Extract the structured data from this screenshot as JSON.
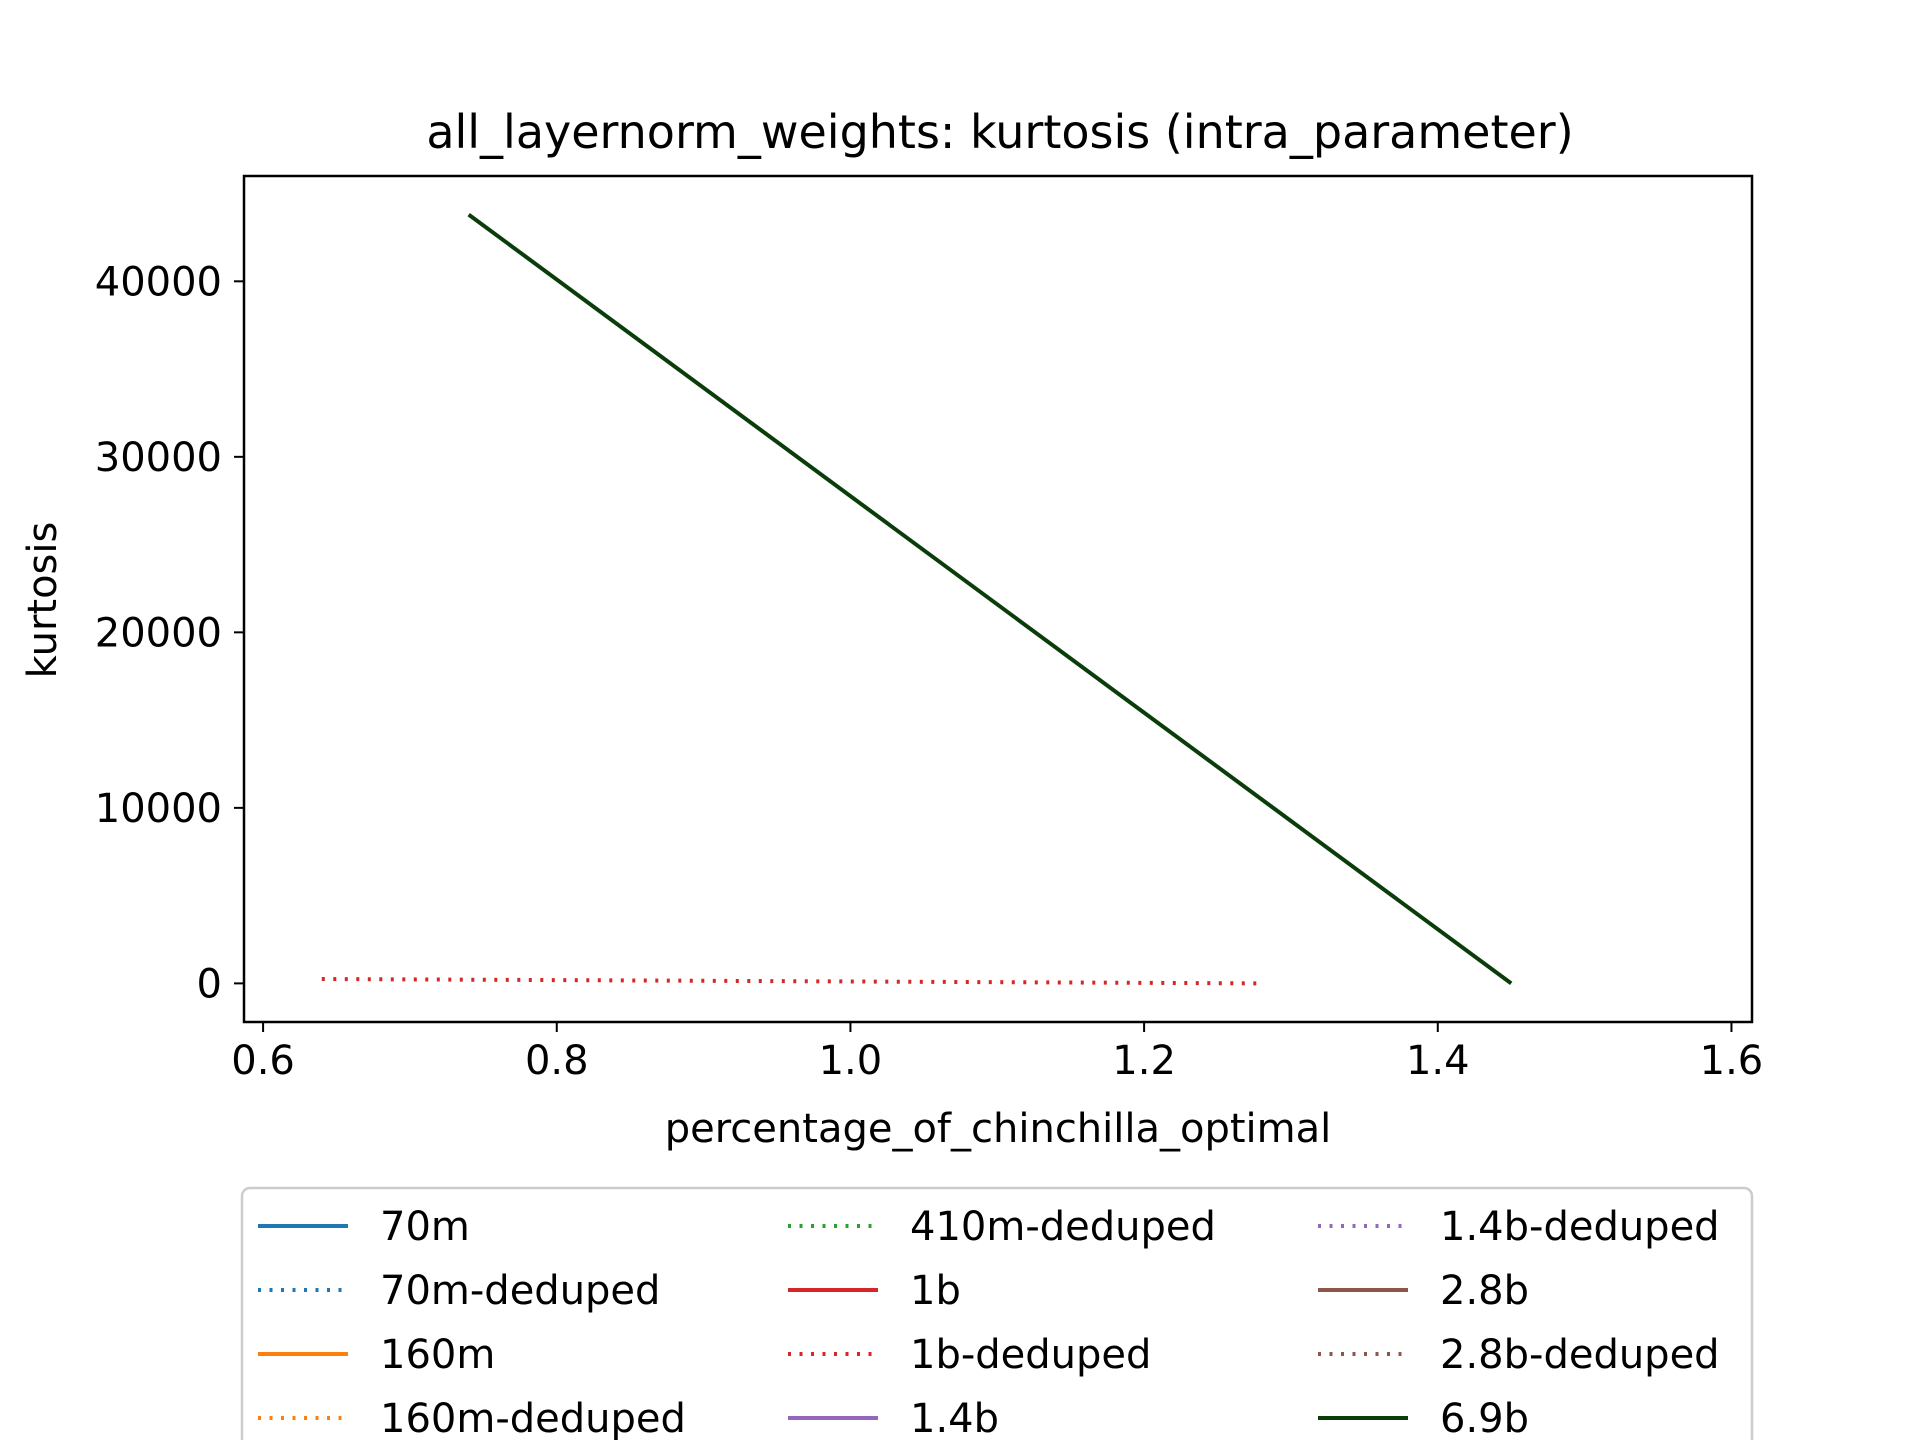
{
  "chart_data": {
    "type": "line",
    "title": "all_layernorm_weights: kurtosis (intra_parameter)",
    "xlabel": "percentage_of_chinchilla_optimal",
    "ylabel": "kurtosis",
    "xlim": [
      0.587,
      1.614
    ],
    "ylim": [
      -2200,
      46000
    ],
    "xticks": [
      0.6,
      0.8,
      1.0,
      1.2,
      1.4,
      1.6
    ],
    "xtick_labels": [
      "0.6",
      "0.8",
      "1.0",
      "1.2",
      "1.4",
      "1.6"
    ],
    "yticks": [
      0,
      10000,
      20000,
      30000,
      40000
    ],
    "ytick_labels": [
      "0",
      "10000",
      "20000",
      "30000",
      "40000"
    ],
    "grid": false,
    "legend_position": "below plot, 3 columns",
    "series": [
      {
        "name": "70m",
        "color": "#1f77b4",
        "dash": "solid",
        "x": [],
        "y": []
      },
      {
        "name": "70m-deduped",
        "color": "#1f77b4",
        "dash": "dotted",
        "x": [],
        "y": []
      },
      {
        "name": "160m",
        "color": "#ff7f0e",
        "dash": "solid",
        "x": [],
        "y": []
      },
      {
        "name": "160m-deduped",
        "color": "#ff7f0e",
        "dash": "dotted",
        "x": [],
        "y": []
      },
      {
        "name": "410m-deduped",
        "color": "#2ca02c",
        "dash": "dotted",
        "x": [],
        "y": []
      },
      {
        "name": "1b",
        "color": "#d62728",
        "dash": "solid",
        "x": [],
        "y": []
      },
      {
        "name": "1b-deduped",
        "color": "#d62728",
        "dash": "dotted",
        "x": [
          0.64,
          1.28
        ],
        "y": [
          250,
          0
        ]
      },
      {
        "name": "1.4b",
        "color": "#9467bd",
        "dash": "solid",
        "x": [],
        "y": []
      },
      {
        "name": "1.4b-deduped",
        "color": "#9467bd",
        "dash": "dotted",
        "x": [],
        "y": []
      },
      {
        "name": "2.8b",
        "color": "#8c564b",
        "dash": "solid",
        "x": [],
        "y": []
      },
      {
        "name": "2.8b-deduped",
        "color": "#8c564b",
        "dash": "dotted",
        "x": [],
        "y": []
      },
      {
        "name": "6.9b",
        "color": "#0b3d0b",
        "dash": "solid",
        "x": [
          0.74,
          1.45
        ],
        "y": [
          43800,
          0
        ]
      }
    ]
  }
}
